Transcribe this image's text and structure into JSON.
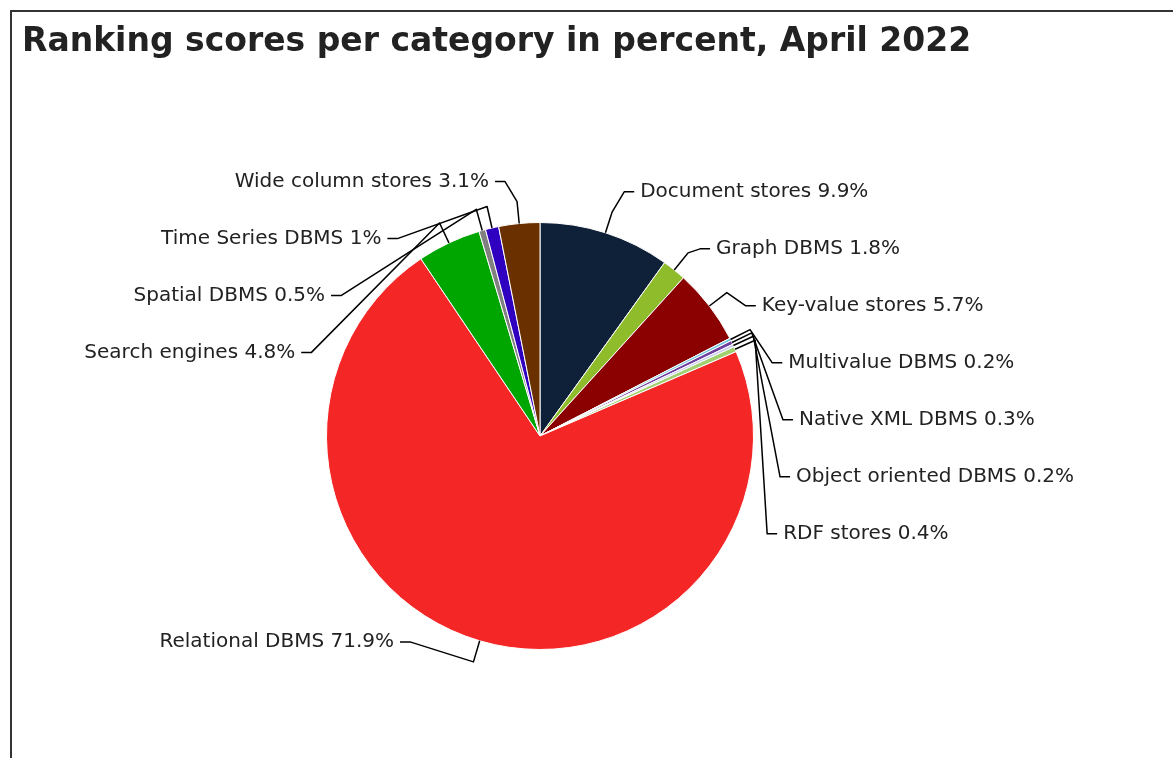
{
  "chart_data": {
    "type": "pie",
    "title": "Ranking scores per category in percent, April 2022",
    "categories": [
      "Document stores",
      "Graph DBMS",
      "Key-value stores",
      "Multivalue DBMS",
      "Native XML DBMS",
      "Object oriented DBMS",
      "RDF stores",
      "Relational DBMS",
      "Search engines",
      "Spatial DBMS",
      "Time Series DBMS",
      "Wide column stores"
    ],
    "values": [
      9.9,
      1.8,
      5.7,
      0.2,
      0.3,
      0.2,
      0.4,
      71.9,
      4.8,
      0.5,
      1,
      3.1
    ],
    "value_labels": [
      "9.9%",
      "1.8%",
      "5.7%",
      "0.2%",
      "0.3%",
      "0.2%",
      "0.4%",
      "71.9%",
      "4.8%",
      "0.5%",
      "1%",
      "3.1%"
    ],
    "colors": [
      "#0e2138",
      "#8fbc2a",
      "#8b0000",
      "#6ec8e0",
      "#7040a0",
      "#c8c8f0",
      "#a0d070",
      "#f42626",
      "#00a600",
      "#808080",
      "#3000c0",
      "#6a3000"
    ],
    "legend": false
  }
}
